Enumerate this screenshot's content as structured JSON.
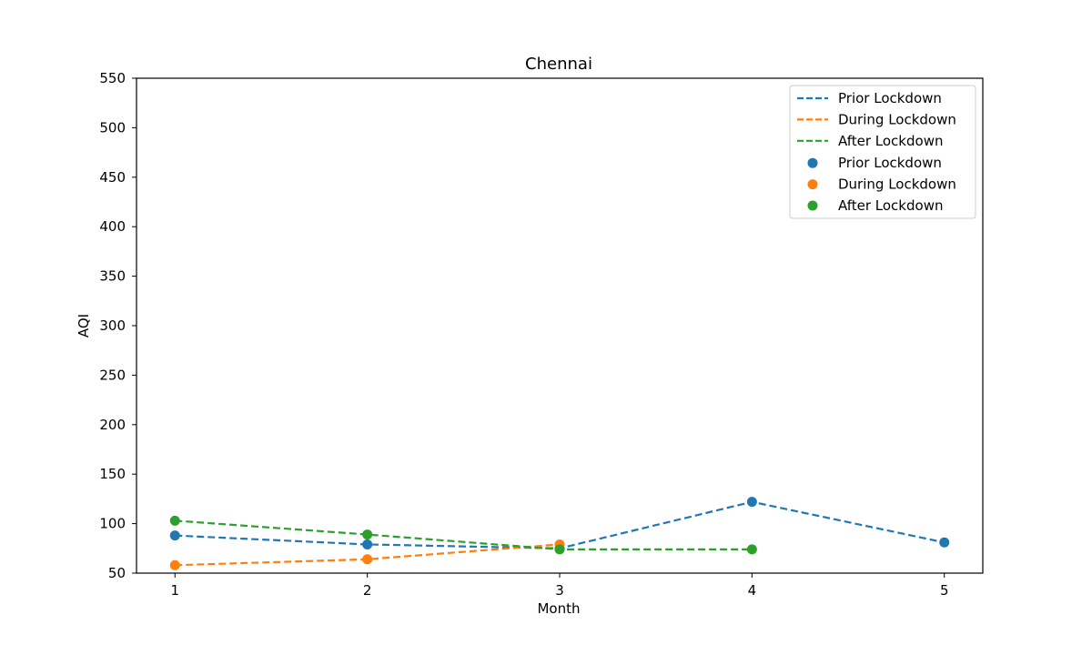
{
  "chart_data": {
    "type": "line",
    "title": "Chennai",
    "xlabel": "Month",
    "ylabel": "AQI",
    "xlim": [
      0.8,
      5.2
    ],
    "ylim": [
      50,
      550
    ],
    "xticks": [
      1,
      2,
      3,
      4,
      5
    ],
    "yticks": [
      50,
      100,
      150,
      200,
      250,
      300,
      350,
      400,
      450,
      500,
      550
    ],
    "grid": false,
    "legend_position": "top-right",
    "series": [
      {
        "name": "Prior Lockdown",
        "color": "#1f77b4",
        "x": [
          1,
          2,
          3,
          4,
          5
        ],
        "values": [
          88,
          79,
          75,
          122,
          81
        ]
      },
      {
        "name": "During Lockdown",
        "color": "#ff7f0e",
        "x": [
          1,
          2,
          3
        ],
        "values": [
          58,
          64,
          79
        ]
      },
      {
        "name": "After Lockdown",
        "color": "#2ca02c",
        "x": [
          1,
          2,
          3,
          4
        ],
        "values": [
          103,
          89,
          74,
          74
        ]
      }
    ],
    "legend": {
      "line_entries": [
        "Prior Lockdown",
        "During Lockdown",
        "After Lockdown"
      ],
      "marker_entries": [
        "Prior Lockdown",
        "During Lockdown",
        "After Lockdown"
      ]
    }
  }
}
